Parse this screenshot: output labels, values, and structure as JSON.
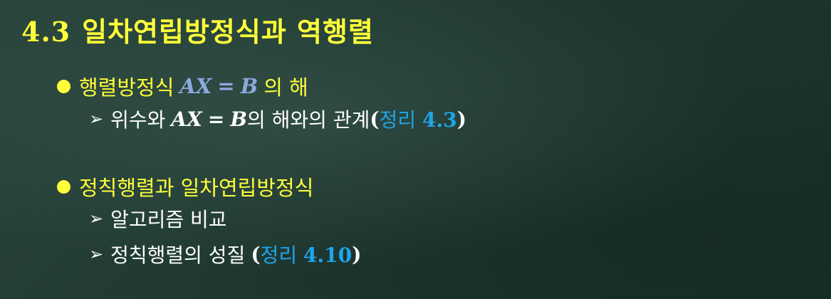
{
  "title": {
    "number": "4.3",
    "text": "일차연립방정식과 역행렬"
  },
  "bullet1": {
    "label": "행렬방정식",
    "eq_lhs": "AX",
    "eq_sign": "=",
    "eq_rhs": "B",
    "suffix": "의 해"
  },
  "sub1": {
    "prefix": "위수와",
    "eq_lhs": "AX",
    "eq_sign": "=",
    "eq_rhs": "B",
    "suffix": "의 해와의 관계",
    "open": "(",
    "ref_word": "정리",
    "ref_num": "4.3",
    "close": ")"
  },
  "bullet2": {
    "label": "정칙행렬과 일차연립방정식"
  },
  "sub2": {
    "text": "알고리즘 비교"
  },
  "sub3": {
    "text": "정칙행렬의 성질",
    "open": "(",
    "ref_word": "정리",
    "ref_num": "4.10",
    "close": ")"
  },
  "icons": {
    "bullet": "filled-circle-icon",
    "sub_bullet": "arrow-right-icon"
  },
  "colors": {
    "title": "#ffff3a",
    "bullet": "#ffff3a",
    "sub": "#ffffff",
    "equation_blue": "#8ea8e0",
    "reference": "#1ea6ea",
    "background": "#1f3a32"
  }
}
